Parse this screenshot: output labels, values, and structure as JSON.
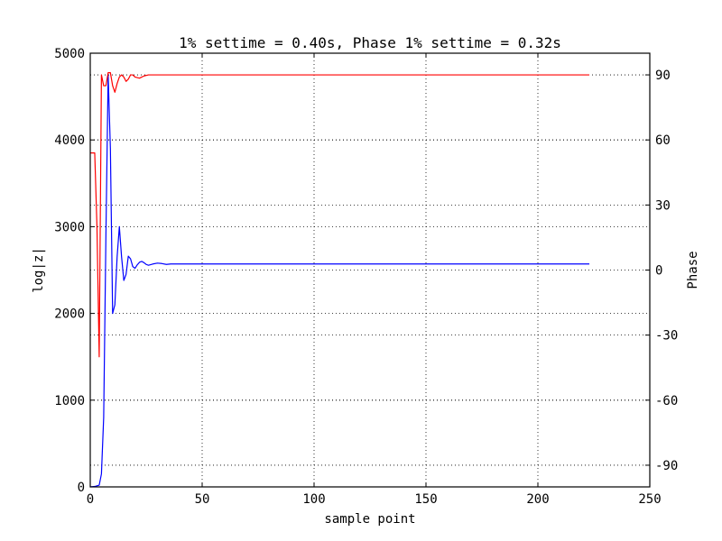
{
  "chart_data": {
    "type": "line",
    "title": "1% settime = 0.40s, Phase 1% settime = 0.32s",
    "xlabel": "sample point",
    "ylabel": "log|z|",
    "y2label": "Phase",
    "xlim": [
      0,
      250
    ],
    "ylim": [
      0,
      5000
    ],
    "y2lim": [
      -100,
      100
    ],
    "xticks": [
      0,
      50,
      100,
      150,
      200,
      250
    ],
    "yticks": [
      0,
      1000,
      2000,
      3000,
      4000,
      5000
    ],
    "y2ticks": [
      -90,
      -60,
      -30,
      0,
      30,
      60,
      90
    ],
    "grid": true,
    "series": [
      {
        "axis": "left",
        "color": "#0000ff",
        "x": [
          0,
          2,
          4,
          5,
          6,
          7,
          8,
          9,
          10,
          11,
          12,
          13,
          14,
          15,
          16,
          17,
          18,
          19,
          20,
          21,
          22,
          23,
          24,
          25,
          26,
          28,
          30,
          32,
          34,
          36,
          40,
          50,
          60,
          80,
          100,
          150,
          200,
          223
        ],
        "y": [
          0,
          5,
          20,
          150,
          800,
          2900,
          4750,
          3900,
          2000,
          2100,
          2650,
          3000,
          2650,
          2380,
          2450,
          2660,
          2630,
          2540,
          2520,
          2560,
          2590,
          2600,
          2585,
          2565,
          2555,
          2570,
          2580,
          2575,
          2565,
          2570,
          2570,
          2570,
          2570,
          2570,
          2570,
          2570,
          2570,
          2570
        ]
      },
      {
        "axis": "right",
        "color": "#ff0000",
        "x": [
          0,
          1,
          2,
          3,
          4,
          5,
          6,
          7,
          8,
          9,
          10,
          11,
          12,
          13,
          14,
          15,
          16,
          17,
          18,
          19,
          20,
          22,
          24,
          26,
          28,
          30,
          40,
          60,
          100,
          150,
          200,
          223
        ],
        "y": [
          54,
          54,
          54,
          20,
          -40,
          90,
          85,
          85,
          91,
          91,
          85,
          82,
          86,
          89,
          90,
          89,
          87,
          88,
          90,
          90,
          89,
          88.5,
          89.5,
          90,
          90,
          90,
          90,
          90,
          90,
          90,
          90,
          90
        ]
      }
    ]
  }
}
